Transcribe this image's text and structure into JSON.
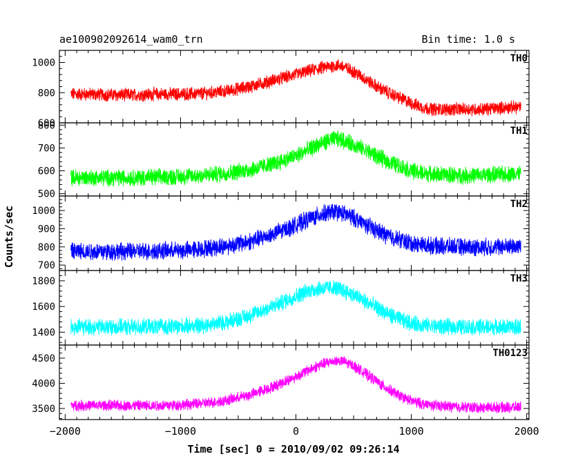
{
  "chart_data": {
    "type": "line",
    "title": "ae100902092614_wam0_trn",
    "subtitle": "Bin time: 1.0 s",
    "xlabel": "Time [sec] 0 = 2010/09/02 09:26:14",
    "ylabel": "Counts/sec",
    "xlim": [
      -2050,
      2020
    ],
    "xticks": [
      -2000,
      -1000,
      0,
      1000,
      2000
    ],
    "xtick_labels": [
      "−2000",
      "−1000",
      "0",
      "1000",
      "2000"
    ],
    "grid": false,
    "legend": "none",
    "series": [
      {
        "name": "TH0",
        "color": "#ff0000",
        "ylim": [
          600,
          1080
        ],
        "yticks": [
          600,
          800,
          1000
        ],
        "ytick_labels": [
          "600",
          "800",
          "1000"
        ],
        "x": [
          -1950,
          -1800,
          -1600,
          -1400,
          -1200,
          -1000,
          -800,
          -600,
          -400,
          -200,
          0,
          100,
          200,
          300,
          350,
          400,
          500,
          600,
          700,
          800,
          900,
          1000,
          1100,
          1200,
          1400,
          1600,
          1800,
          1950
        ],
        "values": [
          790,
          790,
          785,
          785,
          790,
          790,
          795,
          810,
          840,
          880,
          920,
          940,
          960,
          975,
          980,
          975,
          940,
          890,
          840,
          800,
          765,
          730,
          700,
          690,
          690,
          690,
          700,
          705
        ],
        "noise": 38
      },
      {
        "name": "TH1",
        "color": "#00ff00",
        "ylim": [
          490,
          810
        ],
        "yticks": [
          500,
          600,
          700,
          800
        ],
        "ytick_labels": [
          "500",
          "600",
          "700",
          "800"
        ],
        "x": [
          -1950,
          -1800,
          -1600,
          -1400,
          -1200,
          -1000,
          -800,
          -600,
          -400,
          -200,
          0,
          100,
          200,
          300,
          350,
          400,
          500,
          600,
          700,
          800,
          900,
          1000,
          1100,
          1200,
          1400,
          1600,
          1800,
          1950
        ],
        "values": [
          570,
          570,
          570,
          570,
          572,
          575,
          580,
          590,
          605,
          630,
          665,
          690,
          715,
          735,
          740,
          735,
          715,
          690,
          665,
          640,
          620,
          600,
          590,
          585,
          580,
          580,
          585,
          590
        ],
        "noise": 32
      },
      {
        "name": "TH2",
        "color": "#0000ff",
        "ylim": [
          670,
          1080
        ],
        "yticks": [
          700,
          800,
          900,
          1000
        ],
        "ytick_labels": [
          "700",
          "800",
          "900",
          "1000"
        ],
        "x": [
          -1950,
          -1800,
          -1600,
          -1400,
          -1200,
          -1000,
          -800,
          -600,
          -400,
          -200,
          0,
          100,
          200,
          300,
          350,
          400,
          500,
          600,
          700,
          800,
          900,
          1000,
          1100,
          1200,
          1400,
          1600,
          1800,
          1950
        ],
        "values": [
          775,
          775,
          775,
          775,
          778,
          780,
          790,
          805,
          830,
          870,
          920,
          950,
          975,
          990,
          995,
          985,
          960,
          925,
          890,
          860,
          840,
          820,
          810,
          805,
          800,
          798,
          800,
          805
        ],
        "noise": 42
      },
      {
        "name": "TH3",
        "color": "#00ffff",
        "ylim": [
          1300,
          1880
        ],
        "yticks": [
          1400,
          1600,
          1800
        ],
        "ytick_labels": [
          "1400",
          "1600",
          "1800"
        ],
        "x": [
          -1950,
          -1800,
          -1600,
          -1400,
          -1200,
          -1000,
          -800,
          -600,
          -400,
          -200,
          0,
          100,
          200,
          300,
          350,
          400,
          500,
          600,
          700,
          800,
          900,
          1000,
          1100,
          1200,
          1400,
          1600,
          1800,
          1950
        ],
        "values": [
          1440,
          1440,
          1440,
          1440,
          1442,
          1445,
          1455,
          1480,
          1530,
          1600,
          1680,
          1720,
          1740,
          1745,
          1740,
          1730,
          1690,
          1640,
          1590,
          1540,
          1500,
          1470,
          1455,
          1445,
          1440,
          1440,
          1440,
          1440
        ],
        "noise": 55
      },
      {
        "name": "TH0123",
        "color": "#ff00ff",
        "ylim": [
          3280,
          4760
        ],
        "yticks": [
          3500,
          4000,
          4500
        ],
        "ytick_labels": [
          "3500",
          "4000",
          "4500"
        ],
        "x": [
          -1950,
          -1800,
          -1600,
          -1400,
          -1200,
          -1000,
          -800,
          -600,
          -400,
          -200,
          0,
          100,
          200,
          300,
          350,
          400,
          500,
          600,
          700,
          800,
          900,
          1000,
          1100,
          1200,
          1400,
          1600,
          1800,
          1950
        ],
        "values": [
          3560,
          3560,
          3560,
          3555,
          3560,
          3570,
          3600,
          3660,
          3770,
          3930,
          4130,
          4250,
          4360,
          4430,
          4450,
          4440,
          4350,
          4200,
          4040,
          3880,
          3750,
          3650,
          3590,
          3560,
          3530,
          3520,
          3520,
          3530
        ],
        "noise": 95
      }
    ]
  }
}
